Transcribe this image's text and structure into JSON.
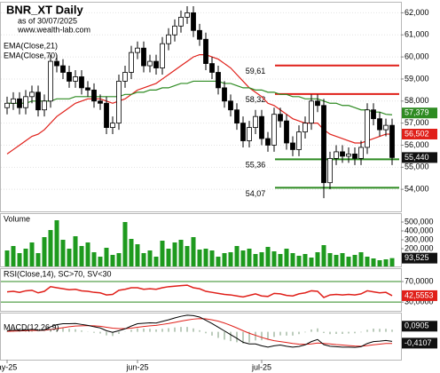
{
  "chart_data": {
    "type": "candlestick",
    "title": "BNR_XT Daily",
    "subtitle": "as of 30/07/2025",
    "source": "www.wealth-lab.com",
    "xticks": [
      {
        "value": 0,
        "label": "ay-25"
      },
      {
        "value": 21,
        "label": "jun-25"
      },
      {
        "value": 41,
        "label": "jul-25"
      }
    ],
    "up_color": "#ffffff",
    "down_color": "#000000",
    "open": [
      57.7,
      57.9,
      58.1,
      57.7,
      58.2,
      58.4,
      57.6,
      58.0,
      59.8,
      59.6,
      59.3,
      58.9,
      59.1,
      58.6,
      58.5,
      58.0,
      57.9,
      56.8,
      57.0,
      58.9,
      59.3,
      60.2,
      60.4,
      59.6,
      59.8,
      59.5,
      60.6,
      61.0,
      61.4,
      61.8,
      62.0,
      61.2,
      60.8,
      59.7,
      59.3,
      58.6,
      58.0,
      57.6,
      57.0,
      56.2,
      56.8,
      57.3,
      56.3,
      56.0,
      57.4,
      57.1,
      56.1,
      55.8,
      56.6,
      57.0,
      58.0,
      57.8,
      54.3,
      55.4,
      55.7,
      55.5,
      55.6,
      55.4,
      55.9,
      57.6,
      57.2,
      56.7,
      56.9
    ],
    "high": [
      58.2,
      58.4,
      58.4,
      58.5,
      58.7,
      58.7,
      58.3,
      60.1,
      60.1,
      59.9,
      59.6,
      59.4,
      59.4,
      58.9,
      58.8,
      58.3,
      58.2,
      57.3,
      59.2,
      59.6,
      60.5,
      60.7,
      60.7,
      60.1,
      60.1,
      60.9,
      61.3,
      61.7,
      62.1,
      62.3,
      62.3,
      61.5,
      61.1,
      60.0,
      59.6,
      58.9,
      58.3,
      57.9,
      57.3,
      57.1,
      57.6,
      57.6,
      56.6,
      57.7,
      57.7,
      57.4,
      56.4,
      56.9,
      57.3,
      58.3,
      58.3,
      58.1,
      55.7,
      56.0,
      56.0,
      55.9,
      55.9,
      56.2,
      57.9,
      57.9,
      57.5,
      57.2,
      57.2
    ],
    "low": [
      57.4,
      57.6,
      57.4,
      57.4,
      57.9,
      57.3,
      57.3,
      57.7,
      59.3,
      59.0,
      58.6,
      58.6,
      58.3,
      58.2,
      57.7,
      57.6,
      56.5,
      56.5,
      56.7,
      58.6,
      59.0,
      59.9,
      59.3,
      59.3,
      59.2,
      59.2,
      60.3,
      60.7,
      61.1,
      61.5,
      60.9,
      60.5,
      59.4,
      59.0,
      58.3,
      57.7,
      57.3,
      56.7,
      55.9,
      55.9,
      56.5,
      56.0,
      55.7,
      55.7,
      56.8,
      55.8,
      55.5,
      55.5,
      56.3,
      56.7,
      57.5,
      53.6,
      54.0,
      55.1,
      55.2,
      55.2,
      55.1,
      55.1,
      55.6,
      56.9,
      56.4,
      56.4,
      55.1
    ],
    "close": [
      57.9,
      58.1,
      57.7,
      58.2,
      58.4,
      57.6,
      58.0,
      59.8,
      59.6,
      59.3,
      58.9,
      59.1,
      58.6,
      58.5,
      58.0,
      57.9,
      56.8,
      57.0,
      58.9,
      59.3,
      60.2,
      60.4,
      59.6,
      59.8,
      59.5,
      60.6,
      61.0,
      61.4,
      61.8,
      62.0,
      61.2,
      60.8,
      59.7,
      59.3,
      58.6,
      58.0,
      57.6,
      57.0,
      56.2,
      56.8,
      57.3,
      56.3,
      56.0,
      57.4,
      57.1,
      56.1,
      55.8,
      56.6,
      57.0,
      58.0,
      57.8,
      54.3,
      55.4,
      55.7,
      55.5,
      55.6,
      55.4,
      55.9,
      57.6,
      57.2,
      56.7,
      56.9,
      55.44
    ],
    "close_last_label": "55,440",
    "ylim": [
      53,
      62.5
    ],
    "yticks": [
      {
        "value": 54,
        "label": "54,000"
      },
      {
        "value": 55,
        "label": "55,000"
      },
      {
        "value": 56,
        "label": "56,000"
      },
      {
        "value": 57,
        "label": "57,000"
      },
      {
        "value": 58,
        "label": "58,000"
      },
      {
        "value": 59,
        "label": "59,000"
      },
      {
        "value": 60,
        "label": "60,000"
      },
      {
        "value": 61,
        "label": "61,000"
      },
      {
        "value": 62,
        "label": "62,000"
      }
    ],
    "series": [
      {
        "name": "EMA(Close,21)",
        "color": "#e0201a",
        "last_label": "56,502",
        "values": [
          55.6,
          55.8,
          56.0,
          56.2,
          56.4,
          56.5,
          56.7,
          57.0,
          57.3,
          57.5,
          57.7,
          57.9,
          58.0,
          58.1,
          58.1,
          58.1,
          58.0,
          57.9,
          58.0,
          58.1,
          58.3,
          58.5,
          58.6,
          58.7,
          58.8,
          59.0,
          59.2,
          59.4,
          59.6,
          59.8,
          60.0,
          60.1,
          60.1,
          60.0,
          59.9,
          59.7,
          59.5,
          59.2,
          58.9,
          58.6,
          58.4,
          58.2,
          57.9,
          57.8,
          57.6,
          57.4,
          57.2,
          57.1,
          57.0,
          57.0,
          57.0,
          56.7,
          56.5,
          56.4,
          56.3,
          56.2,
          56.1,
          56.1,
          56.2,
          56.3,
          56.4,
          56.5,
          56.502
        ]
      },
      {
        "name": "EMA(Close,70)",
        "color": "#2e8b22",
        "last_label": "57,379",
        "values": [
          57.9,
          57.9,
          57.9,
          57.9,
          58.0,
          58.0,
          58.0,
          58.0,
          58.1,
          58.1,
          58.1,
          58.2,
          58.2,
          58.2,
          58.2,
          58.2,
          58.2,
          58.2,
          58.2,
          58.3,
          58.3,
          58.4,
          58.4,
          58.5,
          58.5,
          58.6,
          58.6,
          58.7,
          58.8,
          58.8,
          58.9,
          58.9,
          58.9,
          58.9,
          58.9,
          58.8,
          58.8,
          58.7,
          58.6,
          58.6,
          58.5,
          58.5,
          58.4,
          58.4,
          58.3,
          58.3,
          58.2,
          58.2,
          58.1,
          58.1,
          58.1,
          58.0,
          57.9,
          57.9,
          57.8,
          57.8,
          57.7,
          57.6,
          57.6,
          57.5,
          57.5,
          57.4,
          57.379
        ]
      }
    ],
    "levels": [
      {
        "value": 59.61,
        "label": "59,61",
        "color": "#e0201a"
      },
      {
        "value": 58.32,
        "label": "58,32",
        "color": "#e0201a"
      },
      {
        "value": 55.36,
        "label": "55,36",
        "color": "#2e8b22"
      },
      {
        "value": 54.07,
        "label": "54,07",
        "color": "#2e8b22"
      }
    ],
    "volume": {
      "name": "Volume",
      "color": "#1e9a1e",
      "last_label": "93,525",
      "values": [
        180000,
        230000,
        150000,
        200000,
        270000,
        150000,
        330000,
        410000,
        520000,
        300000,
        200000,
        340000,
        230000,
        270000,
        160000,
        110000,
        210000,
        130000,
        150000,
        500000,
        310000,
        250000,
        150000,
        180000,
        110000,
        290000,
        200000,
        270000,
        300000,
        230000,
        330000,
        190000,
        200000,
        180000,
        110000,
        150000,
        160000,
        230000,
        180000,
        200000,
        140000,
        160000,
        220000,
        170000,
        140000,
        200000,
        150000,
        120000,
        140000,
        100000,
        160000,
        240000,
        150000,
        130000,
        150000,
        110000,
        130000,
        160000,
        110000,
        90000,
        70000,
        80000,
        93525
      ],
      "ylim": [
        0,
        590000
      ],
      "yticks": [
        {
          "value": 200000,
          "label": "200,000"
        },
        {
          "value": 300000,
          "label": "300,000"
        },
        {
          "value": 400000,
          "label": "400,000"
        },
        {
          "value": 500000,
          "label": "500,000"
        }
      ]
    },
    "rsi": {
      "name": "RSI(Close,14), SC>70, SV<30",
      "color": "#e0201a",
      "level_color": "#2e8b22",
      "last_label": "42,5553",
      "values": [
        50,
        51,
        49,
        52,
        53,
        48,
        51,
        60,
        58,
        56,
        54,
        55,
        52,
        51,
        49,
        48,
        44,
        45,
        53,
        55,
        58,
        58,
        55,
        56,
        55,
        58,
        60,
        61,
        62,
        63,
        58,
        56,
        51,
        49,
        47,
        45,
        44,
        42,
        40,
        43,
        46,
        42,
        41,
        47,
        46,
        43,
        42,
        46,
        48,
        52,
        51,
        39,
        44,
        45,
        44,
        45,
        44,
        46,
        52,
        50,
        48,
        49,
        42.5553
      ],
      "ylim": [
        13,
        96
      ],
      "yticks": [
        {
          "value": 30,
          "label": "30,0000"
        },
        {
          "value": 70,
          "label": "70,0000"
        }
      ]
    },
    "macd": {
      "name": "MACD(12,26,9)",
      "ylim": [
        -1.2,
        0.83
      ],
      "macd": {
        "color": "#000000",
        "last_label": "-0,4107",
        "values": [
          0.05,
          0.08,
          0.06,
          0.08,
          0.11,
          0.07,
          0.08,
          0.22,
          0.31,
          0.35,
          0.35,
          0.36,
          0.32,
          0.28,
          0.22,
          0.17,
          0.05,
          -0.02,
          0.05,
          0.13,
          0.25,
          0.35,
          0.37,
          0.39,
          0.38,
          0.45,
          0.52,
          0.6,
          0.67,
          0.72,
          0.7,
          0.64,
          0.5,
          0.36,
          0.2,
          0.04,
          -0.12,
          -0.28,
          -0.45,
          -0.52,
          -0.52,
          -0.6,
          -0.66,
          -0.6,
          -0.57,
          -0.62,
          -0.66,
          -0.63,
          -0.56,
          -0.42,
          -0.33,
          -0.55,
          -0.62,
          -0.64,
          -0.66,
          -0.66,
          -0.67,
          -0.64,
          -0.5,
          -0.42,
          -0.4,
          -0.37,
          -0.4107
        ]
      },
      "signal": {
        "color": "#e0201a",
        "values": [
          0.02,
          0.03,
          0.04,
          0.05,
          0.06,
          0.06,
          0.07,
          0.1,
          0.14,
          0.18,
          0.22,
          0.25,
          0.26,
          0.27,
          0.26,
          0.24,
          0.2,
          0.16,
          0.14,
          0.14,
          0.16,
          0.2,
          0.23,
          0.26,
          0.28,
          0.32,
          0.36,
          0.41,
          0.46,
          0.51,
          0.55,
          0.57,
          0.56,
          0.52,
          0.46,
          0.38,
          0.28,
          0.17,
          0.05,
          -0.06,
          -0.15,
          -0.24,
          -0.32,
          -0.38,
          -0.42,
          -0.46,
          -0.5,
          -0.53,
          -0.54,
          -0.52,
          -0.48,
          -0.5,
          -0.52,
          -0.55,
          -0.57,
          -0.59,
          -0.61,
          -0.62,
          -0.59,
          -0.56,
          -0.53,
          -0.5,
          -0.5012
        ]
      },
      "histogram": {
        "color": "#7a9a7a",
        "last_label": "0,0905",
        "values": [
          0.03,
          0.05,
          0.02,
          0.03,
          0.05,
          0.01,
          0.01,
          0.12,
          0.17,
          0.17,
          0.13,
          0.11,
          0.06,
          0.01,
          -0.04,
          -0.07,
          -0.15,
          -0.18,
          -0.09,
          -0.01,
          0.09,
          0.15,
          0.14,
          0.13,
          0.1,
          0.13,
          0.16,
          0.19,
          0.21,
          0.21,
          0.15,
          0.07,
          -0.06,
          -0.16,
          -0.26,
          -0.34,
          -0.4,
          -0.45,
          -0.5,
          -0.46,
          -0.37,
          -0.36,
          -0.34,
          -0.22,
          -0.15,
          -0.16,
          -0.16,
          -0.1,
          -0.02,
          0.1,
          0.15,
          -0.05,
          -0.1,
          -0.09,
          -0.09,
          -0.07,
          -0.06,
          -0.02,
          0.09,
          0.14,
          0.13,
          0.13,
          0.0905
        ]
      }
    }
  }
}
